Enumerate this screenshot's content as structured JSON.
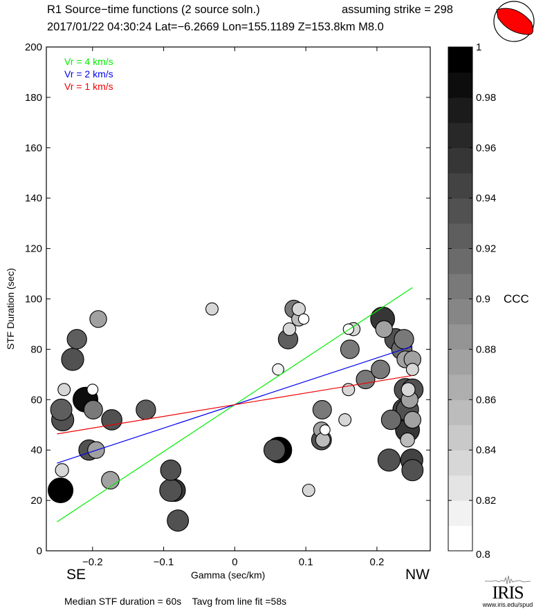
{
  "header": {
    "title": "R1 Source−time functions (2 source soln.)",
    "strike_label": "assuming strike = 298",
    "event_line": "2017/01/22 04:30:24  Lat=−6.2669 Lon=155.1189  Z=153.8km  M8.0"
  },
  "footer": {
    "left_direction": "SE",
    "right_direction": "NW",
    "summary": "Median STF duration = 60s    Tavg from line fit =58s",
    "logo_text": "IRIS",
    "logo_url_text": "www.iris.edu/spud"
  },
  "colors": {
    "vr4": "#00ee00",
    "vr2": "#0000ee",
    "vr1": "#ee0000",
    "beachball_fill": "#ff0000"
  },
  "chart_data": {
    "type": "scatter",
    "title": "R1 Source−time functions (2 source soln.)",
    "xlabel": "Gamma (sec/km)",
    "ylabel": "STF Duration (sec)",
    "xlim": [
      -0.265,
      0.275
    ],
    "ylim": [
      0,
      200
    ],
    "xticks": [
      -0.2,
      -0.1,
      0,
      0.1,
      0.2
    ],
    "xtick_labels": [
      "−0.2",
      "−0.1",
      "0",
      "0.1",
      "0.2"
    ],
    "yticks": [
      0,
      20,
      40,
      60,
      80,
      100,
      120,
      140,
      160,
      180,
      200
    ],
    "ytick_labels": [
      "0",
      "20",
      "40",
      "60",
      "80",
      "100",
      "120",
      "140",
      "160",
      "180",
      "200"
    ],
    "grid": false,
    "legend": {
      "placement": "top-left",
      "entries": [
        {
          "label": "Vr = 4 km/s",
          "color": "#00ee00"
        },
        {
          "label": "Vr = 2 km/s",
          "color": "#0000ee"
        },
        {
          "label": "Vr = 1 km/s",
          "color": "#ee0000"
        }
      ]
    },
    "lines": [
      {
        "name": "Vr = 4 km/s",
        "color": "#00ee00",
        "x": [
          -0.25,
          0.25
        ],
        "y": [
          11.5,
          104.5
        ]
      },
      {
        "name": "Vr = 2 km/s",
        "color": "#0000ee",
        "x": [
          -0.25,
          0.25
        ],
        "y": [
          34.8,
          81.2
        ]
      },
      {
        "name": "Vr = 1 km/s",
        "color": "#ee0000",
        "x": [
          -0.25,
          0.25
        ],
        "y": [
          46.4,
          69.6
        ]
      }
    ],
    "colorbar": {
      "label": "CCC",
      "range": [
        0.8,
        1.0
      ],
      "ticks": [
        0.8,
        0.82,
        0.84,
        0.86,
        0.88,
        0.9,
        0.92,
        0.94,
        0.96,
        0.98,
        1
      ],
      "tick_labels": [
        "0.8",
        "0.82",
        "0.84",
        "0.86",
        "0.88",
        "0.9",
        "0.92",
        "0.94",
        "0.96",
        "0.98",
        "1"
      ],
      "levels": 20
    },
    "points": [
      {
        "x": -0.245,
        "y": 24,
        "ccc": 0.99,
        "size": 1.0
      },
      {
        "x": -0.243,
        "y": 32,
        "ccc": 0.84,
        "size": 0.35
      },
      {
        "x": -0.24,
        "y": 64,
        "ccc": 0.84,
        "size": 0.3
      },
      {
        "x": -0.242,
        "y": 52,
        "ccc": 0.94,
        "size": 0.85
      },
      {
        "x": -0.244,
        "y": 56,
        "ccc": 0.92,
        "size": 0.8
      },
      {
        "x": -0.228,
        "y": 76,
        "ccc": 0.94,
        "size": 0.85
      },
      {
        "x": -0.222,
        "y": 84,
        "ccc": 0.92,
        "size": 0.7
      },
      {
        "x": -0.192,
        "y": 92,
        "ccc": 0.88,
        "size": 0.55
      },
      {
        "x": -0.199,
        "y": 56,
        "ccc": 0.9,
        "size": 0.65
      },
      {
        "x": -0.21,
        "y": 60,
        "ccc": 0.98,
        "size": 1.0
      },
      {
        "x": -0.2,
        "y": 64,
        "ccc": 0.8,
        "size": 0.22
      },
      {
        "x": -0.173,
        "y": 52,
        "ccc": 0.94,
        "size": 0.75
      },
      {
        "x": -0.125,
        "y": 56,
        "ccc": 0.92,
        "size": 0.7
      },
      {
        "x": -0.195,
        "y": 40,
        "ccc": 0.88,
        "size": 0.55
      },
      {
        "x": -0.205,
        "y": 40,
        "ccc": 0.93,
        "size": 0.75
      },
      {
        "x": -0.175,
        "y": 28,
        "ccc": 0.88,
        "size": 0.6
      },
      {
        "x": -0.09,
        "y": 32,
        "ccc": 0.93,
        "size": 0.75
      },
      {
        "x": -0.085,
        "y": 24,
        "ccc": 0.96,
        "size": 0.85
      },
      {
        "x": -0.09,
        "y": 24,
        "ccc": 0.93,
        "size": 0.85
      },
      {
        "x": -0.08,
        "y": 12,
        "ccc": 0.94,
        "size": 0.8
      },
      {
        "x": -0.032,
        "y": 96,
        "ccc": 0.84,
        "size": 0.3
      },
      {
        "x": 0.062,
        "y": 40,
        "ccc": 0.99,
        "size": 1.05
      },
      {
        "x": 0.056,
        "y": 40,
        "ccc": 0.93,
        "size": 0.8
      },
      {
        "x": 0.061,
        "y": 72,
        "ccc": 0.82,
        "size": 0.25
      },
      {
        "x": 0.077,
        "y": 88,
        "ccc": 0.84,
        "size": 0.32
      },
      {
        "x": 0.075,
        "y": 84,
        "ccc": 0.92,
        "size": 0.7
      },
      {
        "x": 0.09,
        "y": 96,
        "ccc": 0.84,
        "size": 0.35
      },
      {
        "x": 0.083,
        "y": 96,
        "ccc": 0.9,
        "size": 0.6
      },
      {
        "x": 0.09,
        "y": 92,
        "ccc": 0.86,
        "size": 0.4
      },
      {
        "x": 0.097,
        "y": 92,
        "ccc": 0.8,
        "size": 0.2
      },
      {
        "x": 0.104,
        "y": 24,
        "ccc": 0.84,
        "size": 0.3
      },
      {
        "x": 0.123,
        "y": 56,
        "ccc": 0.9,
        "size": 0.65
      },
      {
        "x": 0.122,
        "y": 48,
        "ccc": 0.88,
        "size": 0.5
      },
      {
        "x": 0.122,
        "y": 44,
        "ccc": 0.93,
        "size": 0.72
      },
      {
        "x": 0.124,
        "y": 44,
        "ccc": 0.86,
        "size": 0.42
      },
      {
        "x": 0.127,
        "y": 48,
        "ccc": 0.8,
        "size": 0.18
      },
      {
        "x": 0.155,
        "y": 52,
        "ccc": 0.84,
        "size": 0.3
      },
      {
        "x": 0.16,
        "y": 64,
        "ccc": 0.84,
        "size": 0.3
      },
      {
        "x": 0.16,
        "y": 88,
        "ccc": 0.8,
        "size": 0.2
      },
      {
        "x": 0.167,
        "y": 88,
        "ccc": 0.84,
        "size": 0.35
      },
      {
        "x": 0.162,
        "y": 80,
        "ccc": 0.9,
        "size": 0.65
      },
      {
        "x": 0.184,
        "y": 68,
        "ccc": 0.9,
        "size": 0.65
      },
      {
        "x": 0.205,
        "y": 72,
        "ccc": 0.9,
        "size": 0.65
      },
      {
        "x": 0.21,
        "y": 88,
        "ccc": 0.88,
        "size": 0.55
      },
      {
        "x": 0.208,
        "y": 92,
        "ccc": 0.96,
        "size": 0.95
      },
      {
        "x": 0.22,
        "y": 52,
        "ccc": 0.91,
        "size": 0.7
      },
      {
        "x": 0.217,
        "y": 36,
        "ccc": 0.94,
        "size": 0.85
      },
      {
        "x": 0.226,
        "y": 84,
        "ccc": 0.93,
        "size": 0.8
      },
      {
        "x": 0.235,
        "y": 80,
        "ccc": 0.91,
        "size": 0.75
      },
      {
        "x": 0.238,
        "y": 84,
        "ccc": 0.9,
        "size": 0.7
      },
      {
        "x": 0.24,
        "y": 76,
        "ccc": 0.88,
        "size": 0.55
      },
      {
        "x": 0.25,
        "y": 76,
        "ccc": 0.88,
        "size": 0.55
      },
      {
        "x": 0.25,
        "y": 72,
        "ccc": 0.84,
        "size": 0.3
      },
      {
        "x": 0.24,
        "y": 64,
        "ccc": 0.94,
        "size": 0.85
      },
      {
        "x": 0.25,
        "y": 64,
        "ccc": 0.93,
        "size": 0.8
      },
      {
        "x": 0.244,
        "y": 64,
        "ccc": 0.84,
        "size": 0.38
      },
      {
        "x": 0.246,
        "y": 60,
        "ccc": 0.88,
        "size": 0.55
      },
      {
        "x": 0.238,
        "y": 56,
        "ccc": 0.95,
        "size": 0.85
      },
      {
        "x": 0.243,
        "y": 56,
        "ccc": 0.94,
        "size": 0.85
      },
      {
        "x": 0.25,
        "y": 52,
        "ccc": 0.88,
        "size": 0.55
      },
      {
        "x": 0.243,
        "y": 48,
        "ccc": 0.96,
        "size": 0.95
      },
      {
        "x": 0.243,
        "y": 44,
        "ccc": 0.86,
        "size": 0.4
      },
      {
        "x": 0.249,
        "y": 36,
        "ccc": 0.95,
        "size": 0.85
      },
      {
        "x": 0.25,
        "y": 32,
        "ccc": 0.93,
        "size": 0.8
      }
    ]
  }
}
